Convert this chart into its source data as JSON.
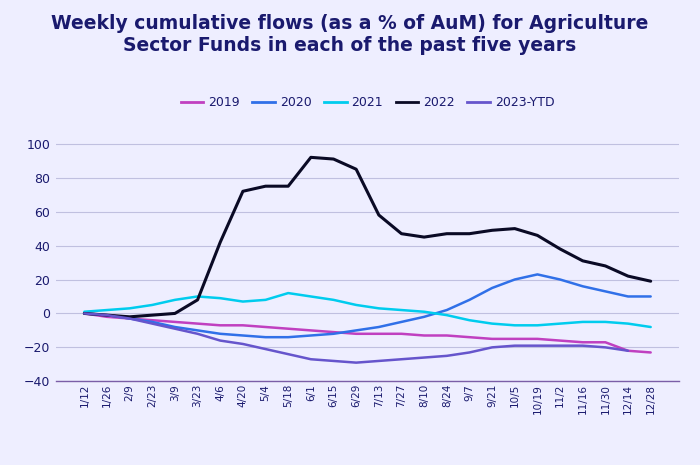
{
  "title_line1": "Weekly cumulative flows (as a % of AuM) for Agriculture",
  "title_line2": "Sector Funds in each of the past five years",
  "title_color": "#1a1a6e",
  "background_color": "#eeeeff",
  "grid_color": "#c0c0e0",
  "border_color": "#7b5ea7",
  "x_labels": [
    "1/12",
    "1/26",
    "2/9",
    "2/23",
    "3/9",
    "3/23",
    "4/6",
    "4/20",
    "5/4",
    "5/18",
    "6/1",
    "6/15",
    "6/29",
    "7/13",
    "7/27",
    "8/10",
    "8/24",
    "9/7",
    "9/21",
    "10/5",
    "10/19",
    "11/2",
    "11/16",
    "11/30",
    "12/14",
    "12/28"
  ],
  "series": {
    "2019": {
      "color": "#c040c0",
      "linewidth": 1.8,
      "data": [
        0,
        -2,
        -3,
        -4,
        -5,
        -6,
        -7,
        -7,
        -8,
        -9,
        -10,
        -11,
        -12,
        -12,
        -12,
        -13,
        -13,
        -14,
        -15,
        -15,
        -15,
        -16,
        -17,
        -17,
        -22,
        -23
      ]
    },
    "2020": {
      "color": "#3070e8",
      "linewidth": 1.8,
      "data": [
        0,
        -1,
        -3,
        -5,
        -8,
        -10,
        -12,
        -13,
        -14,
        -14,
        -13,
        -12,
        -10,
        -8,
        -5,
        -2,
        2,
        8,
        15,
        20,
        23,
        20,
        16,
        13,
        10,
        10
      ]
    },
    "2021": {
      "color": "#00ccee",
      "linewidth": 1.8,
      "data": [
        1,
        2,
        3,
        5,
        8,
        10,
        9,
        7,
        8,
        12,
        10,
        8,
        5,
        3,
        2,
        1,
        -1,
        -4,
        -6,
        -7,
        -7,
        -6,
        -5,
        -5,
        -6,
        -8
      ]
    },
    "2022": {
      "color": "#0a0a25",
      "linewidth": 2.2,
      "data": [
        0,
        -1,
        -2,
        -1,
        0,
        8,
        42,
        72,
        75,
        75,
        92,
        91,
        85,
        58,
        47,
        45,
        47,
        47,
        49,
        50,
        46,
        38,
        31,
        28,
        22,
        19
      ]
    },
    "2023-YTD": {
      "color": "#6655cc",
      "linewidth": 1.8,
      "data": [
        0,
        -1,
        -3,
        -6,
        -9,
        -12,
        -16,
        -18,
        -21,
        -24,
        -27,
        -28,
        -29,
        -28,
        -27,
        -26,
        -25,
        -23,
        -20,
        -19,
        -19,
        -19,
        -19,
        -20,
        -22,
        null
      ]
    }
  },
  "ylim": [
    -40,
    108
  ],
  "yticks": [
    -40,
    -20,
    0,
    20,
    40,
    60,
    80,
    100
  ],
  "legend_order": [
    "2019",
    "2020",
    "2021",
    "2022",
    "2023-YTD"
  ],
  "legend_fontsize": 9,
  "title_fontsize": 13.5
}
